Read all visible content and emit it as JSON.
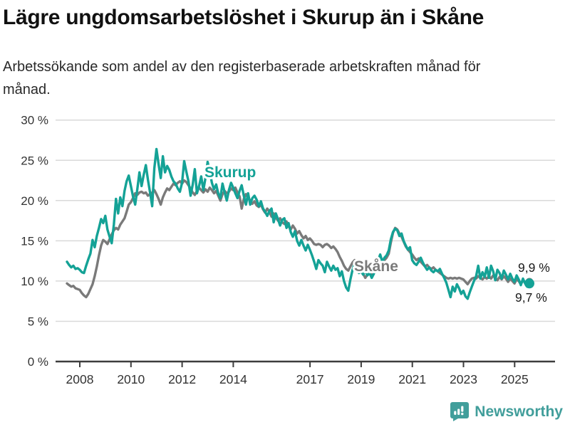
{
  "header": {
    "title": "Lägre ungdomsarbetslöshet i Skurup än i Skåne",
    "subtitle": "Arbetssökande som andel av den registerbaserade arbetskraften månad för månad."
  },
  "footer": {
    "brand": "Newsworthy"
  },
  "chart_data": {
    "type": "line",
    "title": "Lägre ungdomsarbetslöshet i Skurup än i Skåne",
    "subtitle": "Arbetssökande som andel av den registerbaserade arbetskraften månad för månad.",
    "x_unit": "month",
    "x_range": [
      "2007-07",
      "2025-08"
    ],
    "ylim": [
      0,
      30
    ],
    "grid": true,
    "y_ticks": [
      {
        "value": 0,
        "label": "0 %"
      },
      {
        "value": 5,
        "label": "5 %"
      },
      {
        "value": 10,
        "label": "10 %"
      },
      {
        "value": 15,
        "label": "15 %"
      },
      {
        "value": 20,
        "label": "20 %"
      },
      {
        "value": 25,
        "label": "25 %"
      },
      {
        "value": 30,
        "label": "30 %"
      }
    ],
    "x_ticks": [
      {
        "year": 2008,
        "label": "2008"
      },
      {
        "year": 2010,
        "label": "2010"
      },
      {
        "year": 2012,
        "label": "2012"
      },
      {
        "year": 2014,
        "label": "2014"
      },
      {
        "year": 2017,
        "label": "2017"
      },
      {
        "year": 2019,
        "label": "2019"
      },
      {
        "year": 2021,
        "label": "2021"
      },
      {
        "year": 2023,
        "label": "2023"
      },
      {
        "year": 2025,
        "label": "2025"
      }
    ],
    "series": [
      {
        "name": "Skåne",
        "color": "#7a7a7a",
        "end_label": "9,9 %",
        "values": [
          9.7,
          9.5,
          9.3,
          9.4,
          9.1,
          9.0,
          8.9,
          8.5,
          8.2,
          8.0,
          8.4,
          9.0,
          9.6,
          10.6,
          11.8,
          13.2,
          14.4,
          15.1,
          14.9,
          14.6,
          15.2,
          15.8,
          16.3,
          16.6,
          16.4,
          17.0,
          17.4,
          17.8,
          18.6,
          19.5,
          19.8,
          20.3,
          20.9,
          20.7,
          21.0,
          21.1,
          20.9,
          21.0,
          20.6,
          20.8,
          21.0,
          21.3,
          20.8,
          20.2,
          19.5,
          20.4,
          21.0,
          21.5,
          21.3,
          21.7,
          22.1,
          21.9,
          22.2,
          22.4,
          22.1,
          22.5,
          22.3,
          21.9,
          21.5,
          21.0,
          20.7,
          21.2,
          21.6,
          21.3,
          21.0,
          21.4,
          21.1,
          21.6,
          21.3,
          20.9,
          21.2,
          20.6,
          20.0,
          20.8,
          21.2,
          20.9,
          21.1,
          21.5,
          21.3,
          21.6,
          21.0,
          20.5,
          19.0,
          20.2,
          20.8,
          20.4,
          20.0,
          19.6,
          19.9,
          19.4,
          19.2,
          19.5,
          18.9,
          18.5,
          19.0,
          18.6,
          18.0,
          18.4,
          17.9,
          17.5,
          17.8,
          17.3,
          17.1,
          17.4,
          16.8,
          16.4,
          16.9,
          16.5,
          15.9,
          16.2,
          15.7,
          15.3,
          15.6,
          15.1,
          15.3,
          15.0,
          14.6,
          14.5,
          14.6,
          14.5,
          14.2,
          14.5,
          14.6,
          14.4,
          14.1,
          14.3,
          14.0,
          13.6,
          13.0,
          12.5,
          11.9,
          11.5,
          11.3,
          11.8,
          12.3,
          12.6,
          12.2,
          11.8,
          11.4,
          10.9,
          10.4,
          10.8,
          11.2,
          10.7,
          11.0,
          11.4,
          11.7,
          12.0,
          12.3,
          12.6,
          12.9,
          13.4,
          14.8,
          16.0,
          16.6,
          16.4,
          15.9,
          15.5,
          14.9,
          14.3,
          13.9,
          13.6,
          13.3,
          12.9,
          12.6,
          12.8,
          12.4,
          12.1,
          11.8,
          12.0,
          11.7,
          11.5,
          11.7,
          11.4,
          11.2,
          11.0,
          10.8,
          10.6,
          10.4,
          10.3,
          10.4,
          10.3,
          10.4,
          10.3,
          10.4,
          10.3,
          10.2,
          9.9,
          9.6,
          10.0,
          10.3,
          10.4,
          10.3,
          10.6,
          10.4,
          10.2,
          10.5,
          10.3,
          10.6,
          10.3,
          10.7,
          10.4,
          10.1,
          10.5,
          10.2,
          10.6,
          10.3,
          9.9,
          10.3,
          10.0,
          9.7,
          10.2,
          10.0,
          9.6,
          10.1,
          9.8,
          9.6,
          9.9
        ]
      },
      {
        "name": "Skurup",
        "color": "#14a296",
        "end_label": "9,7 %",
        "values": [
          12.4,
          12.0,
          11.7,
          11.9,
          11.5,
          11.6,
          11.4,
          11.1,
          11.0,
          11.9,
          12.7,
          13.4,
          15.1,
          14.2,
          15.6,
          16.6,
          17.7,
          17.2,
          18.1,
          16.4,
          15.5,
          14.7,
          17.0,
          20.2,
          18.4,
          20.4,
          19.3,
          21.2,
          22.4,
          23.1,
          21.8,
          20.5,
          19.5,
          21.4,
          23.5,
          21.8,
          23.2,
          24.4,
          22.6,
          21.0,
          19.3,
          24.0,
          26.4,
          24.5,
          22.8,
          25.5,
          23.5,
          24.3,
          23.8,
          23.0,
          22.4,
          22.1,
          21.5,
          21.1,
          22.2,
          24.9,
          23.6,
          22.4,
          20.6,
          22.0,
          23.9,
          20.9,
          21.8,
          23.0,
          21.3,
          22.8,
          24.8,
          23.6,
          22.2,
          21.4,
          22.0,
          20.9,
          20.3,
          22.1,
          21.0,
          20.0,
          21.3,
          22.2,
          21.6,
          20.9,
          20.3,
          21.2,
          21.9,
          20.6,
          19.5,
          20.9,
          19.5,
          20.3,
          20.6,
          20.1,
          19.3,
          19.9,
          19.0,
          18.6,
          18.1,
          18.7,
          19.0,
          17.3,
          18.4,
          17.7,
          16.9,
          17.6,
          17.8,
          16.6,
          17.2,
          16.1,
          15.5,
          16.2,
          15.0,
          14.4,
          15.1,
          14.4,
          13.8,
          14.5,
          13.9,
          13.2,
          12.4,
          11.5,
          12.6,
          12.2,
          11.9,
          11.1,
          12.4,
          11.8,
          11.3,
          11.9,
          11.4,
          11.6,
          10.6,
          11.2,
          10.0,
          9.2,
          8.8,
          10.2,
          11.4,
          12.2,
          11.6,
          11.0,
          11.2,
          10.8,
          11.3,
          10.7,
          11.0,
          10.4,
          10.9,
          11.8,
          12.6,
          13.3,
          12.4,
          12.9,
          13.2,
          13.8,
          15.2,
          16.1,
          16.5,
          16.3,
          15.6,
          15.9,
          15.0,
          14.4,
          13.9,
          14.2,
          12.6,
          12.2,
          12.0,
          12.4,
          12.9,
          12.3,
          11.8,
          11.4,
          11.7,
          11.3,
          11.1,
          11.4,
          11.2,
          11.5,
          10.9,
          10.4,
          9.8,
          8.9,
          8.0,
          9.3,
          8.7,
          9.6,
          9.1,
          8.4,
          8.8,
          8.1,
          7.8,
          8.6,
          9.3,
          10.0,
          10.6,
          11.9,
          10.3,
          11.1,
          10.5,
          11.7,
          10.4,
          11.9,
          11.2,
          10.1,
          11.4,
          11.0,
          10.3,
          11.3,
          10.8,
          10.2,
          10.9,
          10.3,
          9.9,
          10.7,
          10.2,
          9.5,
          10.3,
          9.7,
          9.3,
          9.7
        ]
      }
    ]
  }
}
